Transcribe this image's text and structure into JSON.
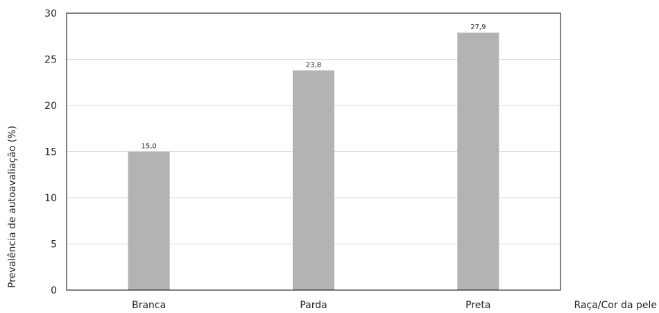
{
  "chart_data": {
    "type": "bar",
    "title": "",
    "categories": [
      "Branca",
      "Parda",
      "Preta"
    ],
    "values": [
      15.0,
      23.8,
      27.9
    ],
    "value_labels": [
      "15,0",
      "23,8",
      "27,9"
    ],
    "xlabel": "Raça/Cor da pele",
    "ylabel": "Prevalência de autoavaliação (%)",
    "ylim": [
      0,
      30
    ],
    "yticks": [
      "0",
      "5",
      "10",
      "15",
      "20",
      "25",
      "30"
    ],
    "grid": true,
    "bar_color": "#b3b3b3",
    "grid_color": "#d9d9d9"
  }
}
